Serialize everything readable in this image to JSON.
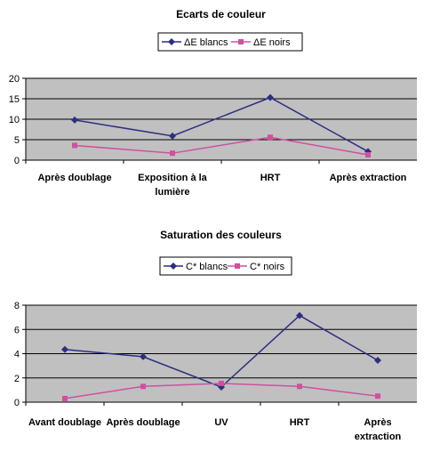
{
  "chart_data": [
    {
      "type": "line",
      "title": "Ecarts de couleur",
      "categories": [
        "Après doublage",
        "Exposition à la lumière",
        "HRT",
        "Après extraction"
      ],
      "category_lines": [
        [
          "Après doublage"
        ],
        [
          "Exposition à la",
          "lumière"
        ],
        [
          "HRT"
        ],
        [
          "Après extraction"
        ]
      ],
      "series": [
        {
          "name": "ΔE blancs",
          "color": "#2e2e80",
          "marker": "diamond",
          "values": [
            9.8,
            5.9,
            15.3,
            2.1
          ]
        },
        {
          "name": "ΔE noirs",
          "color": "#d050a0",
          "marker": "square",
          "values": [
            3.6,
            1.7,
            5.6,
            1.3
          ]
        }
      ],
      "ylim": [
        0,
        20
      ],
      "yticks": [
        0,
        5,
        10,
        15,
        20
      ],
      "grid": true,
      "legend": "top-center",
      "plot_background": "#c0c0c0"
    },
    {
      "type": "line",
      "title": "Saturation des couleurs",
      "categories": [
        "Avant doublage",
        "Après doublage",
        "UV",
        "HRT",
        "Après extraction"
      ],
      "category_lines": [
        [
          "Avant doublage"
        ],
        [
          "Après doublage"
        ],
        [
          "UV"
        ],
        [
          "HRT"
        ],
        [
          "Après",
          "extraction"
        ]
      ],
      "series": [
        {
          "name": "C* blancs",
          "color": "#2e2e80",
          "marker": "diamond",
          "values": [
            4.35,
            3.75,
            1.25,
            7.15,
            3.45
          ]
        },
        {
          "name": "C* noirs",
          "color": "#d050a0",
          "marker": "square",
          "values": [
            0.3,
            1.3,
            1.55,
            1.3,
            0.5
          ]
        }
      ],
      "ylim": [
        0,
        8
      ],
      "yticks": [
        0,
        2,
        4,
        6,
        8
      ],
      "grid": true,
      "legend": "top-center",
      "plot_background": "#c0c0c0"
    }
  ]
}
